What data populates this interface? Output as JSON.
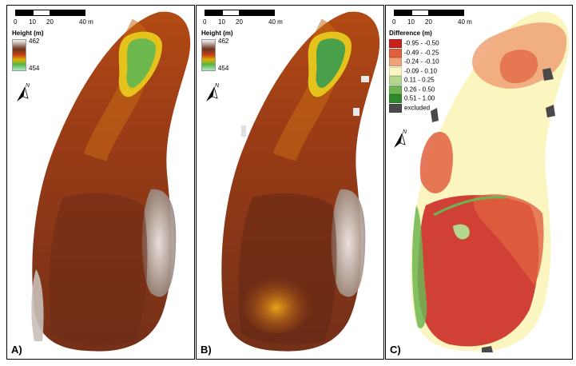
{
  "scale_bar": {
    "labels": [
      "0",
      "10",
      "20",
      "40 m"
    ]
  },
  "panels": [
    {
      "letter": "A)",
      "legend": {
        "title": "Height (m)",
        "max": "462",
        "min": "454"
      }
    },
    {
      "letter": "B)",
      "legend": {
        "title": "Height (m)",
        "max": "462",
        "min": "454"
      }
    },
    {
      "letter": "C)",
      "legend": {
        "title": "Difference (m)",
        "classes": [
          {
            "label": "-0.95 - -0.50",
            "color": "#c8201c"
          },
          {
            "label": "-0.49 - -0.25",
            "color": "#e0603e"
          },
          {
            "label": "-0.24 - -0.10",
            "color": "#efa276"
          },
          {
            "label": "-0.09 - 0.10",
            "color": "#fbf5c0"
          },
          {
            "label": "0.11 - 0.25",
            "color": "#b5d88d"
          },
          {
            "label": "0.26 - 0.50",
            "color": "#6db552"
          },
          {
            "label": "0.51 - 1.00",
            "color": "#2f8a2e"
          },
          {
            "label": "excluded",
            "color": "#4a4a4a"
          }
        ]
      }
    }
  ],
  "north_label": "N",
  "colors": {
    "height_ramp": [
      "#f5f5f5",
      "#6b3520",
      "#c8421a",
      "#e0b000",
      "#55b340",
      "#aee6c0"
    ],
    "dem_base": "#8e3a18",
    "dem_high": "#c86a14",
    "depression_outer": "#e6c21c",
    "depression_inner": "#5cb24c",
    "lower_slope": "#7a2e14",
    "excluded_grey": "#d8d8d8"
  }
}
